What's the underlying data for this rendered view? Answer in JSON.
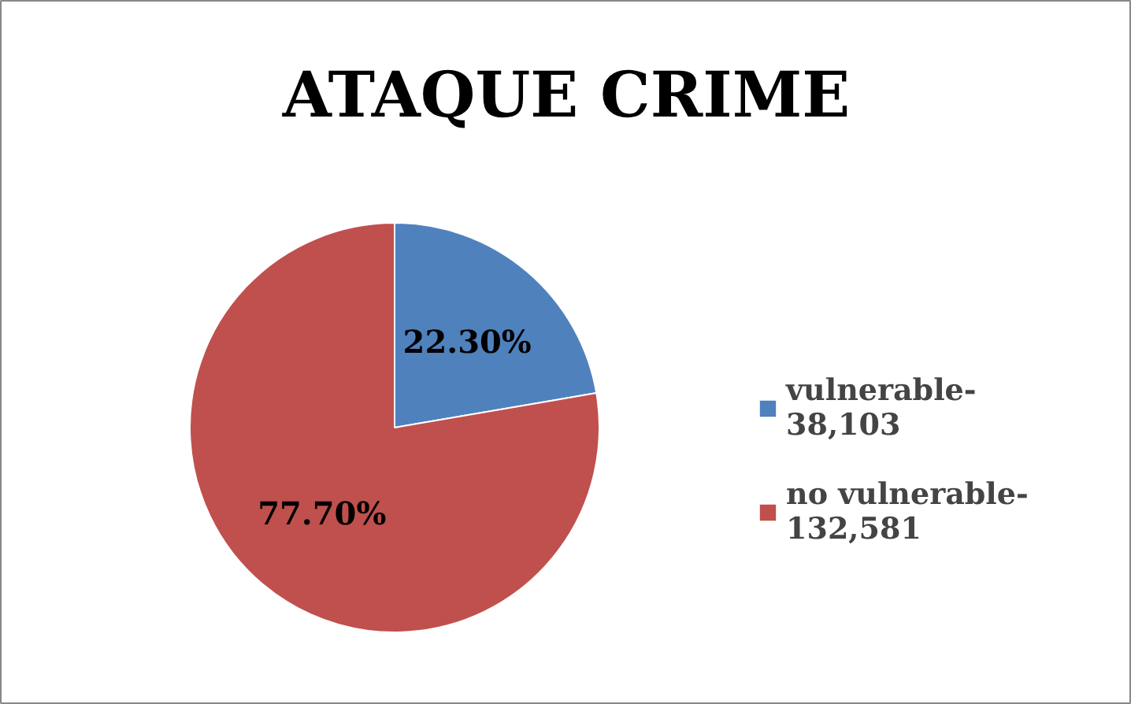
{
  "chart_data": {
    "type": "pie",
    "title": "ATAQUE CRIME",
    "categories": [
      "vulnerable-38,103",
      "no vulnerable-132,581"
    ],
    "values": [
      22.3,
      77.7
    ],
    "colors": [
      "#4f81bd",
      "#c0504d"
    ],
    "value_labels": [
      "22.30%",
      "77.70%"
    ],
    "legend": "right"
  }
}
